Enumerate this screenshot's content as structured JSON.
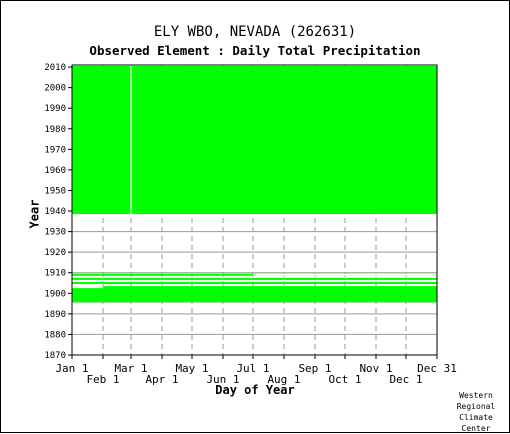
{
  "chart_data": {
    "type": "area",
    "title": "ELY WBO, NEVADA   (262631)",
    "subtitle": "Observed Element : Daily Total Precipitation",
    "xlabel": "Day of Year",
    "ylabel": "Year",
    "xlim": [
      1,
      366
    ],
    "ylim": [
      1870,
      2011
    ],
    "x_ticks_upper": [
      {
        "label": "Jan 1",
        "day": 1
      },
      {
        "label": "Mar 1",
        "day": 60
      },
      {
        "label": "May 1",
        "day": 121
      },
      {
        "label": "Jul 1",
        "day": 182
      },
      {
        "label": "Sep 1",
        "day": 244
      },
      {
        "label": "Nov 1",
        "day": 305
      },
      {
        "label": "Dec 31",
        "day": 366
      }
    ],
    "x_ticks_lower": [
      {
        "label": "Feb 1",
        "day": 32
      },
      {
        "label": "Apr 1",
        "day": 91
      },
      {
        "label": "Jun 1",
        "day": 152
      },
      {
        "label": "Aug 1",
        "day": 213
      },
      {
        "label": "Oct 1",
        "day": 274
      },
      {
        "label": "Dec 1",
        "day": 335
      }
    ],
    "y_ticks": [
      1870,
      1880,
      1890,
      1900,
      1910,
      1920,
      1930,
      1940,
      1950,
      1960,
      1970,
      1980,
      1990,
      2000,
      2010
    ],
    "grid": true,
    "fill_color": "#00ff00",
    "data_available_periods": [
      {
        "day_start": 1,
        "day_end": 366,
        "year_start": 1938.5,
        "year_end": 2010.5
      },
      {
        "day_start": 1,
        "day_end": 366,
        "year_start": 1895.5,
        "year_end": 1903.5
      },
      {
        "day_start": 1,
        "day_end": 366,
        "year_start": 1904.5,
        "year_end": 1905.5
      },
      {
        "day_start": 1,
        "day_end": 366,
        "year_start": 1906.5,
        "year_end": 1907.5
      },
      {
        "day_start": 1,
        "day_end": 366,
        "year_start": 1908.5,
        "year_end": 1909.5
      }
    ],
    "data_gaps": [
      {
        "day_start": 32,
        "day_end": 60,
        "year_start": 1938.5,
        "year_end": 2010.5
      },
      {
        "day_start": 305,
        "day_end": 366,
        "year_start": 1937.5,
        "year_end": 1938.5
      },
      {
        "day_start": 1,
        "day_end": 32,
        "year_start": 1902.5,
        "year_end": 1903.5
      },
      {
        "day_start": 182,
        "day_end": 366,
        "year_start": 1908.5,
        "year_end": 1909.5
      }
    ]
  },
  "credit_text": "Western Regional Climate Center"
}
